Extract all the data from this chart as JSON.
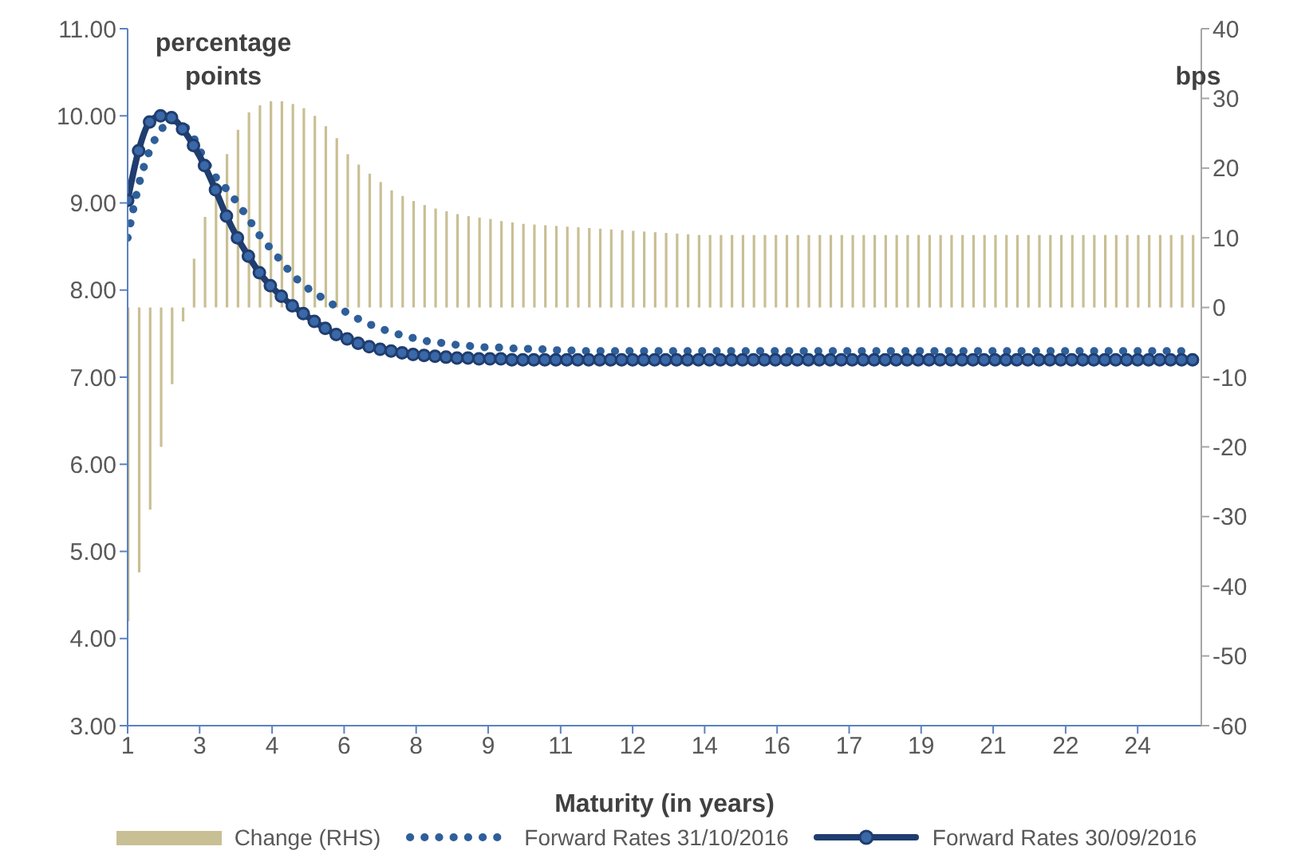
{
  "chart_data": {
    "type": "line",
    "xlabel": "Maturity (in years)",
    "ylabel": "percentage points",
    "y2label": "bps",
    "legend": "bottom",
    "xlim": [
      1,
      25.45
    ],
    "xticks": [
      1,
      {
        "value": 2.64,
        "label": "3"
      },
      {
        "value": 4.29,
        "label": "4"
      },
      {
        "value": 5.93,
        "label": "6"
      },
      {
        "value": 7.57,
        "label": "8"
      },
      {
        "value": 9.21,
        "label": "9"
      },
      {
        "value": 10.86,
        "label": "11"
      },
      {
        "value": 12.5,
        "label": "12"
      },
      {
        "value": 14.14,
        "label": "14"
      },
      {
        "value": 15.79,
        "label": "16"
      },
      {
        "value": 17.43,
        "label": "17"
      },
      {
        "value": 19.07,
        "label": "19"
      },
      {
        "value": 20.71,
        "label": "21"
      },
      {
        "value": 22.36,
        "label": "22"
      },
      {
        "value": 24,
        "label": "24"
      }
    ],
    "ylim": [
      3,
      11
    ],
    "yticks": [
      {
        "value": 3,
        "label": "3.00"
      },
      {
        "value": 4,
        "label": "4.00"
      },
      {
        "value": 5,
        "label": "5.00"
      },
      {
        "value": 6,
        "label": "6.00"
      },
      {
        "value": 7,
        "label": "7.00"
      },
      {
        "value": 8,
        "label": "8.00"
      },
      {
        "value": 9,
        "label": "9.00"
      },
      {
        "value": 10,
        "label": "10.00"
      },
      {
        "value": 11,
        "label": "11.00"
      }
    ],
    "y2lim": [
      -60,
      40
    ],
    "y2ticks": [
      -60,
      -50,
      -40,
      -30,
      -20,
      -10,
      0,
      10,
      20,
      30,
      40
    ],
    "x": [
      1,
      1.25,
      1.5,
      1.75,
      2,
      2.25,
      2.5,
      2.75,
      3,
      3.25,
      3.5,
      3.75,
      4,
      4.25,
      4.5,
      4.75,
      5,
      5.25,
      5.5,
      5.75,
      6,
      6.25,
      6.5,
      6.75,
      7,
      7.25,
      7.5,
      7.75,
      8,
      8.25,
      8.5,
      8.75,
      9,
      9.25,
      9.5,
      9.75,
      10,
      10.25,
      10.5,
      10.75,
      11,
      11.25,
      11.5,
      11.75,
      12,
      12.25,
      12.5,
      12.75,
      13,
      13.25,
      13.5,
      13.75,
      14,
      14.25,
      14.5,
      14.75,
      15,
      15.25,
      15.5,
      15.75,
      16,
      16.25,
      16.5,
      16.75,
      17,
      17.25,
      17.5,
      17.75,
      18,
      18.25,
      18.5,
      18.75,
      19,
      19.25,
      19.5,
      19.75,
      20,
      20.25,
      20.5,
      20.75,
      21,
      21.25,
      21.5,
      21.75,
      22,
      22.25,
      22.5,
      22.75,
      23,
      23.25,
      23.5,
      23.75,
      24,
      24.25,
      24.5,
      24.75,
      25,
      25.25
    ],
    "series": [
      {
        "name": "Change (RHS)",
        "type": "bar",
        "axis": "y2",
        "color": "#c9bf94",
        "values": [
          -45,
          -38,
          -29,
          -20,
          -11,
          -2,
          7,
          13,
          18,
          22,
          25.5,
          28,
          29,
          29.6,
          29.6,
          29.2,
          28.6,
          27.5,
          26,
          24.3,
          22,
          20.5,
          19.2,
          18,
          16.8,
          16,
          15.3,
          14.7,
          14.2,
          13.8,
          13.4,
          13.1,
          12.9,
          12.7,
          12.4,
          12.2,
          12,
          11.9,
          11.8,
          11.7,
          11.6,
          11.5,
          11.4,
          11.3,
          11.2,
          11.1,
          11,
          10.9,
          10.8,
          10.7,
          10.6,
          10.5,
          10.4,
          10.4,
          10.4,
          10.4,
          10.4,
          10.4,
          10.4,
          10.4,
          10.4,
          10.4,
          10.4,
          10.4,
          10.4,
          10.4,
          10.4,
          10.4,
          10.4,
          10.4,
          10.4,
          10.4,
          10.4,
          10.4,
          10.4,
          10.4,
          10.4,
          10.4,
          10.4,
          10.4,
          10.4,
          10.4,
          10.4,
          10.4,
          10.4,
          10.4,
          10.4,
          10.4,
          10.4,
          10.4,
          10.4,
          10.4,
          10.4,
          10.4,
          10.4,
          10.4,
          10.4,
          10.4
        ]
      },
      {
        "name": "Forward Rates 31/10/2016",
        "line_style": "dotted",
        "color": "#2e5f9a",
        "values": [
          8.6,
          9.2,
          9.6,
          9.83,
          9.95,
          9.9,
          9.75,
          9.5,
          9.3,
          9.16,
          9.0,
          8.82,
          8.63,
          8.48,
          8.33,
          8.18,
          8.06,
          7.97,
          7.89,
          7.81,
          7.74,
          7.67,
          7.61,
          7.56,
          7.52,
          7.48,
          7.45,
          7.42,
          7.4,
          7.39,
          7.37,
          7.36,
          7.35,
          7.34,
          7.34,
          7.33,
          7.33,
          7.32,
          7.32,
          7.31,
          7.31,
          7.3,
          7.3,
          7.3,
          7.3,
          7.3,
          7.3,
          7.3,
          7.3,
          7.3,
          7.3,
          7.3,
          7.3,
          7.3,
          7.3,
          7.3,
          7.3,
          7.3,
          7.3,
          7.3,
          7.3,
          7.3,
          7.3,
          7.3,
          7.3,
          7.3,
          7.3,
          7.3,
          7.3,
          7.3,
          7.3,
          7.3,
          7.3,
          7.3,
          7.3,
          7.3,
          7.3,
          7.3,
          7.3,
          7.3,
          7.3,
          7.3,
          7.3,
          7.3,
          7.3,
          7.3,
          7.3,
          7.3,
          7.3,
          7.3,
          7.3,
          7.3,
          7.3,
          7.3,
          7.3,
          7.3,
          7.3,
          7.3
        ]
      },
      {
        "name": "Forward Rates 30/09/2016",
        "line_style": "solid",
        "marker": "circle",
        "color": "#1f3d6e",
        "values": [
          9.03,
          9.6,
          9.93,
          10.0,
          9.98,
          9.85,
          9.66,
          9.43,
          9.15,
          8.85,
          8.6,
          8.39,
          8.2,
          8.05,
          7.93,
          7.82,
          7.73,
          7.64,
          7.56,
          7.49,
          7.44,
          7.39,
          7.35,
          7.32,
          7.3,
          7.28,
          7.26,
          7.25,
          7.24,
          7.23,
          7.22,
          7.22,
          7.21,
          7.21,
          7.21,
          7.2,
          7.2,
          7.2,
          7.2,
          7.2,
          7.2,
          7.2,
          7.2,
          7.2,
          7.2,
          7.2,
          7.2,
          7.2,
          7.2,
          7.2,
          7.2,
          7.2,
          7.2,
          7.2,
          7.2,
          7.2,
          7.2,
          7.2,
          7.2,
          7.2,
          7.2,
          7.2,
          7.2,
          7.2,
          7.2,
          7.2,
          7.2,
          7.2,
          7.2,
          7.2,
          7.2,
          7.2,
          7.2,
          7.2,
          7.2,
          7.2,
          7.2,
          7.2,
          7.2,
          7.2,
          7.2,
          7.2,
          7.2,
          7.2,
          7.2,
          7.2,
          7.2,
          7.2,
          7.2,
          7.2,
          7.2,
          7.2,
          7.2,
          7.2,
          7.2,
          7.2,
          7.2,
          7.2
        ]
      }
    ]
  }
}
